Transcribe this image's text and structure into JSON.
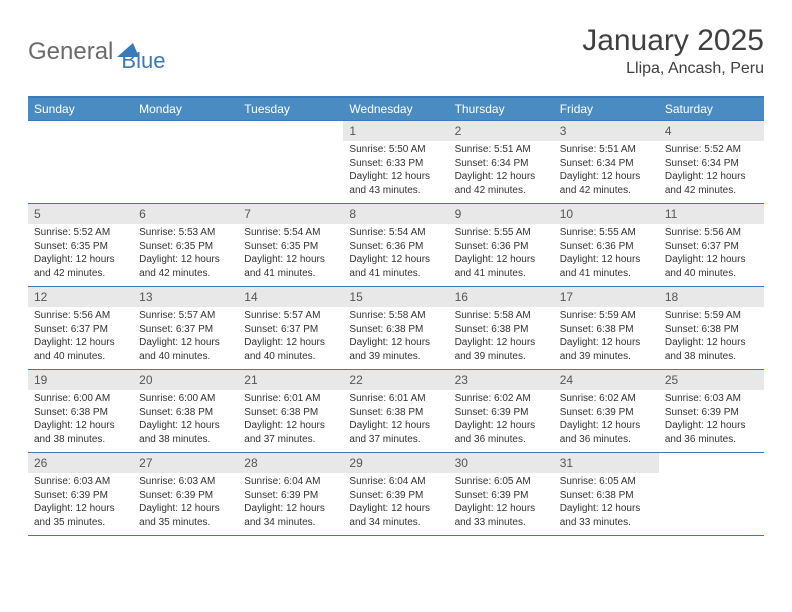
{
  "logo": {
    "part1": "General",
    "part2": "Blue"
  },
  "title": "January 2025",
  "location": "Llipa, Ancash, Peru",
  "colors": {
    "header_bg": "#4a8bc2",
    "border": "#3a7ab8",
    "daynum_bg": "#e8e8e8",
    "text": "#333333",
    "title_text": "#404040"
  },
  "day_headers": [
    "Sunday",
    "Monday",
    "Tuesday",
    "Wednesday",
    "Thursday",
    "Friday",
    "Saturday"
  ],
  "weeks": [
    [
      {
        "n": "",
        "sr": "",
        "ss": "",
        "dl": ""
      },
      {
        "n": "",
        "sr": "",
        "ss": "",
        "dl": ""
      },
      {
        "n": "",
        "sr": "",
        "ss": "",
        "dl": ""
      },
      {
        "n": "1",
        "sr": "5:50 AM",
        "ss": "6:33 PM",
        "dl": "12 hours and 43 minutes."
      },
      {
        "n": "2",
        "sr": "5:51 AM",
        "ss": "6:34 PM",
        "dl": "12 hours and 42 minutes."
      },
      {
        "n": "3",
        "sr": "5:51 AM",
        "ss": "6:34 PM",
        "dl": "12 hours and 42 minutes."
      },
      {
        "n": "4",
        "sr": "5:52 AM",
        "ss": "6:34 PM",
        "dl": "12 hours and 42 minutes."
      }
    ],
    [
      {
        "n": "5",
        "sr": "5:52 AM",
        "ss": "6:35 PM",
        "dl": "12 hours and 42 minutes."
      },
      {
        "n": "6",
        "sr": "5:53 AM",
        "ss": "6:35 PM",
        "dl": "12 hours and 42 minutes."
      },
      {
        "n": "7",
        "sr": "5:54 AM",
        "ss": "6:35 PM",
        "dl": "12 hours and 41 minutes."
      },
      {
        "n": "8",
        "sr": "5:54 AM",
        "ss": "6:36 PM",
        "dl": "12 hours and 41 minutes."
      },
      {
        "n": "9",
        "sr": "5:55 AM",
        "ss": "6:36 PM",
        "dl": "12 hours and 41 minutes."
      },
      {
        "n": "10",
        "sr": "5:55 AM",
        "ss": "6:36 PM",
        "dl": "12 hours and 41 minutes."
      },
      {
        "n": "11",
        "sr": "5:56 AM",
        "ss": "6:37 PM",
        "dl": "12 hours and 40 minutes."
      }
    ],
    [
      {
        "n": "12",
        "sr": "5:56 AM",
        "ss": "6:37 PM",
        "dl": "12 hours and 40 minutes."
      },
      {
        "n": "13",
        "sr": "5:57 AM",
        "ss": "6:37 PM",
        "dl": "12 hours and 40 minutes."
      },
      {
        "n": "14",
        "sr": "5:57 AM",
        "ss": "6:37 PM",
        "dl": "12 hours and 40 minutes."
      },
      {
        "n": "15",
        "sr": "5:58 AM",
        "ss": "6:38 PM",
        "dl": "12 hours and 39 minutes."
      },
      {
        "n": "16",
        "sr": "5:58 AM",
        "ss": "6:38 PM",
        "dl": "12 hours and 39 minutes."
      },
      {
        "n": "17",
        "sr": "5:59 AM",
        "ss": "6:38 PM",
        "dl": "12 hours and 39 minutes."
      },
      {
        "n": "18",
        "sr": "5:59 AM",
        "ss": "6:38 PM",
        "dl": "12 hours and 38 minutes."
      }
    ],
    [
      {
        "n": "19",
        "sr": "6:00 AM",
        "ss": "6:38 PM",
        "dl": "12 hours and 38 minutes."
      },
      {
        "n": "20",
        "sr": "6:00 AM",
        "ss": "6:38 PM",
        "dl": "12 hours and 38 minutes."
      },
      {
        "n": "21",
        "sr": "6:01 AM",
        "ss": "6:38 PM",
        "dl": "12 hours and 37 minutes."
      },
      {
        "n": "22",
        "sr": "6:01 AM",
        "ss": "6:38 PM",
        "dl": "12 hours and 37 minutes."
      },
      {
        "n": "23",
        "sr": "6:02 AM",
        "ss": "6:39 PM",
        "dl": "12 hours and 36 minutes."
      },
      {
        "n": "24",
        "sr": "6:02 AM",
        "ss": "6:39 PM",
        "dl": "12 hours and 36 minutes."
      },
      {
        "n": "25",
        "sr": "6:03 AM",
        "ss": "6:39 PM",
        "dl": "12 hours and 36 minutes."
      }
    ],
    [
      {
        "n": "26",
        "sr": "6:03 AM",
        "ss": "6:39 PM",
        "dl": "12 hours and 35 minutes."
      },
      {
        "n": "27",
        "sr": "6:03 AM",
        "ss": "6:39 PM",
        "dl": "12 hours and 35 minutes."
      },
      {
        "n": "28",
        "sr": "6:04 AM",
        "ss": "6:39 PM",
        "dl": "12 hours and 34 minutes."
      },
      {
        "n": "29",
        "sr": "6:04 AM",
        "ss": "6:39 PM",
        "dl": "12 hours and 34 minutes."
      },
      {
        "n": "30",
        "sr": "6:05 AM",
        "ss": "6:39 PM",
        "dl": "12 hours and 33 minutes."
      },
      {
        "n": "31",
        "sr": "6:05 AM",
        "ss": "6:38 PM",
        "dl": "12 hours and 33 minutes."
      },
      {
        "n": "",
        "sr": "",
        "ss": "",
        "dl": ""
      }
    ]
  ],
  "labels": {
    "sunrise": "Sunrise:",
    "sunset": "Sunset:",
    "daylight": "Daylight:"
  }
}
